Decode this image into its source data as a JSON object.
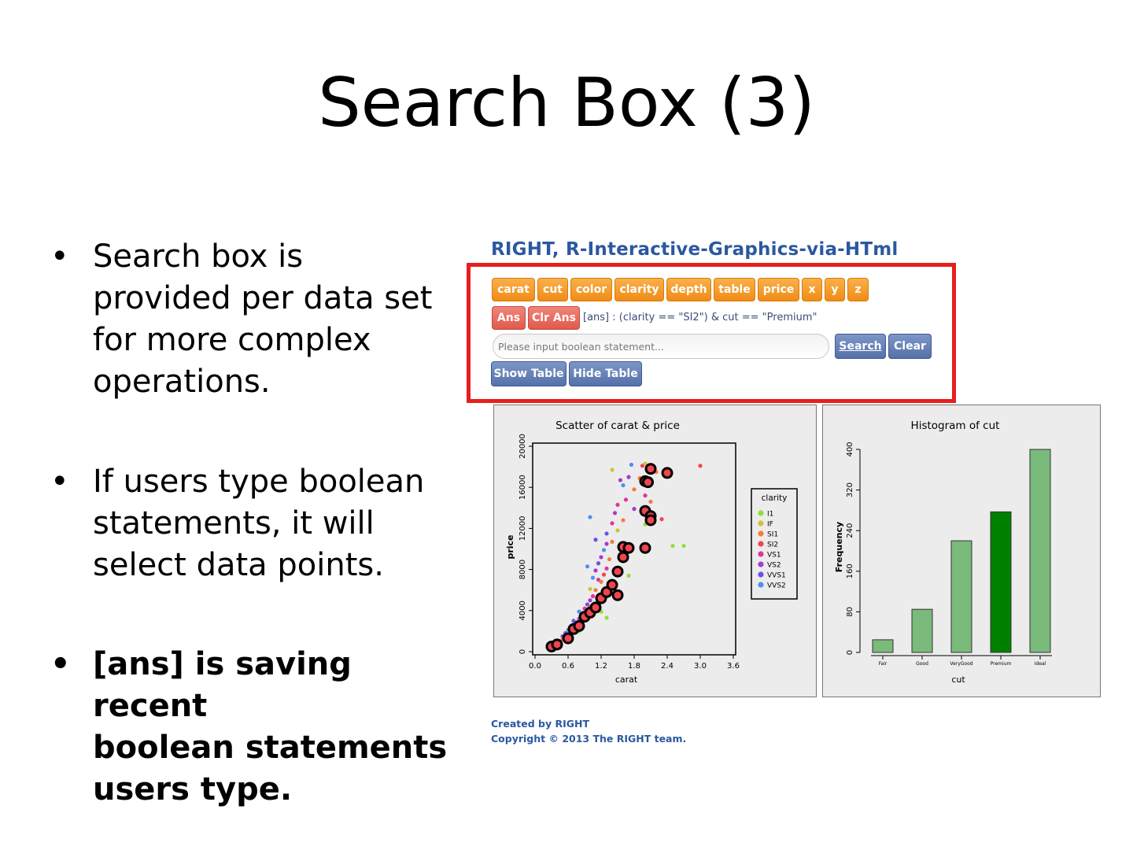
{
  "slide": {
    "title": "Search Box (3)",
    "bullets": [
      {
        "text": "Search box is provided per data set for more complex operations.",
        "lines": [
          "Search box is",
          "provided per data set",
          "for more complex",
          "operations."
        ]
      },
      {
        "text": "If users type boolean statements, it will select data points.",
        "lines": [
          "If users type boolean",
          "statements, it will",
          "select data points."
        ]
      },
      {
        "text": "[ans] is saving recent boolean statements users type.",
        "lines": [
          "[ans] is saving recent",
          "boolean statements",
          "users type."
        ]
      }
    ],
    "bullet_symbol": "•"
  },
  "app": {
    "title": "RIGHT, R-Interactive-Graphics-via-HTml",
    "variable_buttons": [
      "carat",
      "cut",
      "color",
      "clarity",
      "depth",
      "table",
      "price",
      "x",
      "y",
      "z"
    ],
    "ans_button": "Ans",
    "clr_ans_button": "Clr Ans",
    "ans_text": "[ans] : (clarity == \"SI2\") & cut == \"Premium\"",
    "search_placeholder": "Please input boolean statement...",
    "search_button": "Search",
    "clear_button": "Clear",
    "show_table_button": "Show Table",
    "hide_table_button": "Hide Table",
    "highlight_color": "#e81e1e"
  },
  "chart_data": [
    {
      "type": "scatter",
      "title": "Scatter of carat & price",
      "xlabel": "carat",
      "ylabel": "price",
      "xticks": [
        "0.0",
        "0.6",
        "1.2",
        "1.8",
        "2.4",
        "3.0",
        "3.6"
      ],
      "yticks": [
        "0",
        "4000",
        "8000",
        "12000",
        "16000",
        "20000"
      ],
      "xlim": [
        0,
        3.6
      ],
      "ylim": [
        0,
        20000
      ],
      "legend": {
        "title": "clarity",
        "placement": "right",
        "entries": [
          {
            "name": "I1",
            "color": "#8fdf3a"
          },
          {
            "name": "IF",
            "color": "#cfc23a"
          },
          {
            "name": "SI1",
            "color": "#f37d3b"
          },
          {
            "name": "SI2",
            "color": "#f0444f"
          },
          {
            "name": "VS1",
            "color": "#e0359a"
          },
          {
            "name": "VS2",
            "color": "#a63cc9"
          },
          {
            "name": "VVS1",
            "color": "#6a52e6"
          },
          {
            "name": "VVS2",
            "color": "#4f8ff0"
          }
        ]
      },
      "selected_style": {
        "fill": "#f0444f",
        "stroke": "#000000"
      },
      "selected_points": [
        [
          0.3,
          500
        ],
        [
          0.4,
          700
        ],
        [
          0.6,
          1300
        ],
        [
          0.7,
          2200
        ],
        [
          0.8,
          2500
        ],
        [
          0.9,
          3400
        ],
        [
          1.0,
          3800
        ],
        [
          1.1,
          4300
        ],
        [
          1.2,
          5200
        ],
        [
          1.3,
          5800
        ],
        [
          1.4,
          6500
        ],
        [
          1.5,
          5500
        ],
        [
          1.5,
          7800
        ],
        [
          1.6,
          9200
        ],
        [
          1.6,
          10200
        ],
        [
          1.7,
          10100
        ],
        [
          2.0,
          10100
        ],
        [
          2.0,
          13700
        ],
        [
          2.1,
          13200
        ],
        [
          2.1,
          12800
        ],
        [
          2.0,
          16600
        ],
        [
          2.05,
          16500
        ],
        [
          2.1,
          17800
        ],
        [
          2.4,
          17400
        ]
      ],
      "points": [
        {
          "x": 0.3,
          "y": 400,
          "c": "VS2"
        },
        {
          "x": 0.35,
          "y": 600,
          "c": "SI1"
        },
        {
          "x": 0.4,
          "y": 800,
          "c": "VVS2"
        },
        {
          "x": 0.45,
          "y": 1000,
          "c": "VS1"
        },
        {
          "x": 0.5,
          "y": 1500,
          "c": "VVS1"
        },
        {
          "x": 0.5,
          "y": 1200,
          "c": "SI1"
        },
        {
          "x": 0.55,
          "y": 1800,
          "c": "VS2"
        },
        {
          "x": 0.6,
          "y": 1700,
          "c": "IF"
        },
        {
          "x": 0.6,
          "y": 2100,
          "c": "VVS2"
        },
        {
          "x": 0.65,
          "y": 2300,
          "c": "SI1"
        },
        {
          "x": 0.7,
          "y": 2600,
          "c": "VS1"
        },
        {
          "x": 0.7,
          "y": 3000,
          "c": "VVS1"
        },
        {
          "x": 0.75,
          "y": 2800,
          "c": "SI2"
        },
        {
          "x": 0.8,
          "y": 3200,
          "c": "VS2"
        },
        {
          "x": 0.8,
          "y": 3900,
          "c": "VVS2"
        },
        {
          "x": 0.85,
          "y": 3500,
          "c": "SI1"
        },
        {
          "x": 0.9,
          "y": 4200,
          "c": "VS1"
        },
        {
          "x": 0.9,
          "y": 3000,
          "c": "I1"
        },
        {
          "x": 0.95,
          "y": 4600,
          "c": "VVS1"
        },
        {
          "x": 1.0,
          "y": 5000,
          "c": "VS2"
        },
        {
          "x": 1.0,
          "y": 4400,
          "c": "SI1"
        },
        {
          "x": 1.0,
          "y": 6100,
          "c": "IF"
        },
        {
          "x": 1.05,
          "y": 5400,
          "c": "VS1"
        },
        {
          "x": 1.05,
          "y": 7200,
          "c": "VVS2"
        },
        {
          "x": 1.1,
          "y": 6000,
          "c": "SI1"
        },
        {
          "x": 1.1,
          "y": 7900,
          "c": "VS2"
        },
        {
          "x": 1.15,
          "y": 7000,
          "c": "VS1"
        },
        {
          "x": 1.15,
          "y": 8600,
          "c": "VVS1"
        },
        {
          "x": 1.2,
          "y": 6800,
          "c": "SI1"
        },
        {
          "x": 1.2,
          "y": 9200,
          "c": "VS2"
        },
        {
          "x": 1.25,
          "y": 7500,
          "c": "SI2"
        },
        {
          "x": 1.25,
          "y": 9900,
          "c": "VVS2"
        },
        {
          "x": 1.3,
          "y": 8100,
          "c": "VS1"
        },
        {
          "x": 1.3,
          "y": 10500,
          "c": "VS2"
        },
        {
          "x": 1.3,
          "y": 11500,
          "c": "VVS1"
        },
        {
          "x": 1.35,
          "y": 9000,
          "c": "SI1"
        },
        {
          "x": 1.4,
          "y": 12500,
          "c": "VS1"
        },
        {
          "x": 1.4,
          "y": 10700,
          "c": "SI1"
        },
        {
          "x": 1.45,
          "y": 13500,
          "c": "VS2"
        },
        {
          "x": 1.5,
          "y": 14300,
          "c": "VS1"
        },
        {
          "x": 1.5,
          "y": 11800,
          "c": "IF"
        },
        {
          "x": 1.55,
          "y": 9500,
          "c": "VS2"
        },
        {
          "x": 1.6,
          "y": 16200,
          "c": "VVS2"
        },
        {
          "x": 1.6,
          "y": 12800,
          "c": "SI1"
        },
        {
          "x": 1.65,
          "y": 14800,
          "c": "VS1"
        },
        {
          "x": 1.7,
          "y": 17000,
          "c": "VS2"
        },
        {
          "x": 1.7,
          "y": 7400,
          "c": "I1"
        },
        {
          "x": 1.75,
          "y": 18200,
          "c": "VVS2"
        },
        {
          "x": 1.8,
          "y": 15800,
          "c": "SI1"
        },
        {
          "x": 1.8,
          "y": 13900,
          "c": "VS2"
        },
        {
          "x": 1.9,
          "y": 16900,
          "c": "SI1"
        },
        {
          "x": 1.95,
          "y": 18100,
          "c": "SI2"
        },
        {
          "x": 2.0,
          "y": 15200,
          "c": "VS1"
        },
        {
          "x": 2.0,
          "y": 12400,
          "c": "I1"
        },
        {
          "x": 2.0,
          "y": 18300,
          "c": "IF"
        },
        {
          "x": 2.1,
          "y": 14600,
          "c": "SI1"
        },
        {
          "x": 2.2,
          "y": 17500,
          "c": "SI1"
        },
        {
          "x": 2.3,
          "y": 12900,
          "c": "SI2"
        },
        {
          "x": 2.5,
          "y": 10300,
          "c": "I1"
        },
        {
          "x": 2.7,
          "y": 10300,
          "c": "I1"
        },
        {
          "x": 3.0,
          "y": 18100,
          "c": "SI2"
        },
        {
          "x": 1.4,
          "y": 17700,
          "c": "IF"
        },
        {
          "x": 1.0,
          "y": 13100,
          "c": "VVS2"
        },
        {
          "x": 1.1,
          "y": 10900,
          "c": "VVS1"
        },
        {
          "x": 0.8,
          "y": 2000,
          "c": "I1"
        },
        {
          "x": 1.3,
          "y": 3300,
          "c": "I1"
        },
        {
          "x": 1.2,
          "y": 3900,
          "c": "I1"
        },
        {
          "x": 0.95,
          "y": 8300,
          "c": "VVS2"
        },
        {
          "x": 1.55,
          "y": 16700,
          "c": "VS2"
        }
      ]
    },
    {
      "type": "bar",
      "title": "Histogram of cut",
      "xlabel": "cut",
      "ylabel": "Frequency",
      "categories": [
        "Fair",
        "Good",
        "VeryGood",
        "Premium",
        "Ideal"
      ],
      "values": [
        25,
        85,
        220,
        277,
        400
      ],
      "yticks": [
        "0",
        "80",
        "160",
        "240",
        "320",
        "400"
      ],
      "ylim": [
        0,
        400
      ],
      "bar_color": "#7aba7a",
      "highlight_category": "Premium",
      "highlight_color": "#008000"
    }
  ],
  "footer": {
    "created_by": "Created by RIGHT",
    "copyright": "Copyright © 2013 The RIGHT team."
  }
}
